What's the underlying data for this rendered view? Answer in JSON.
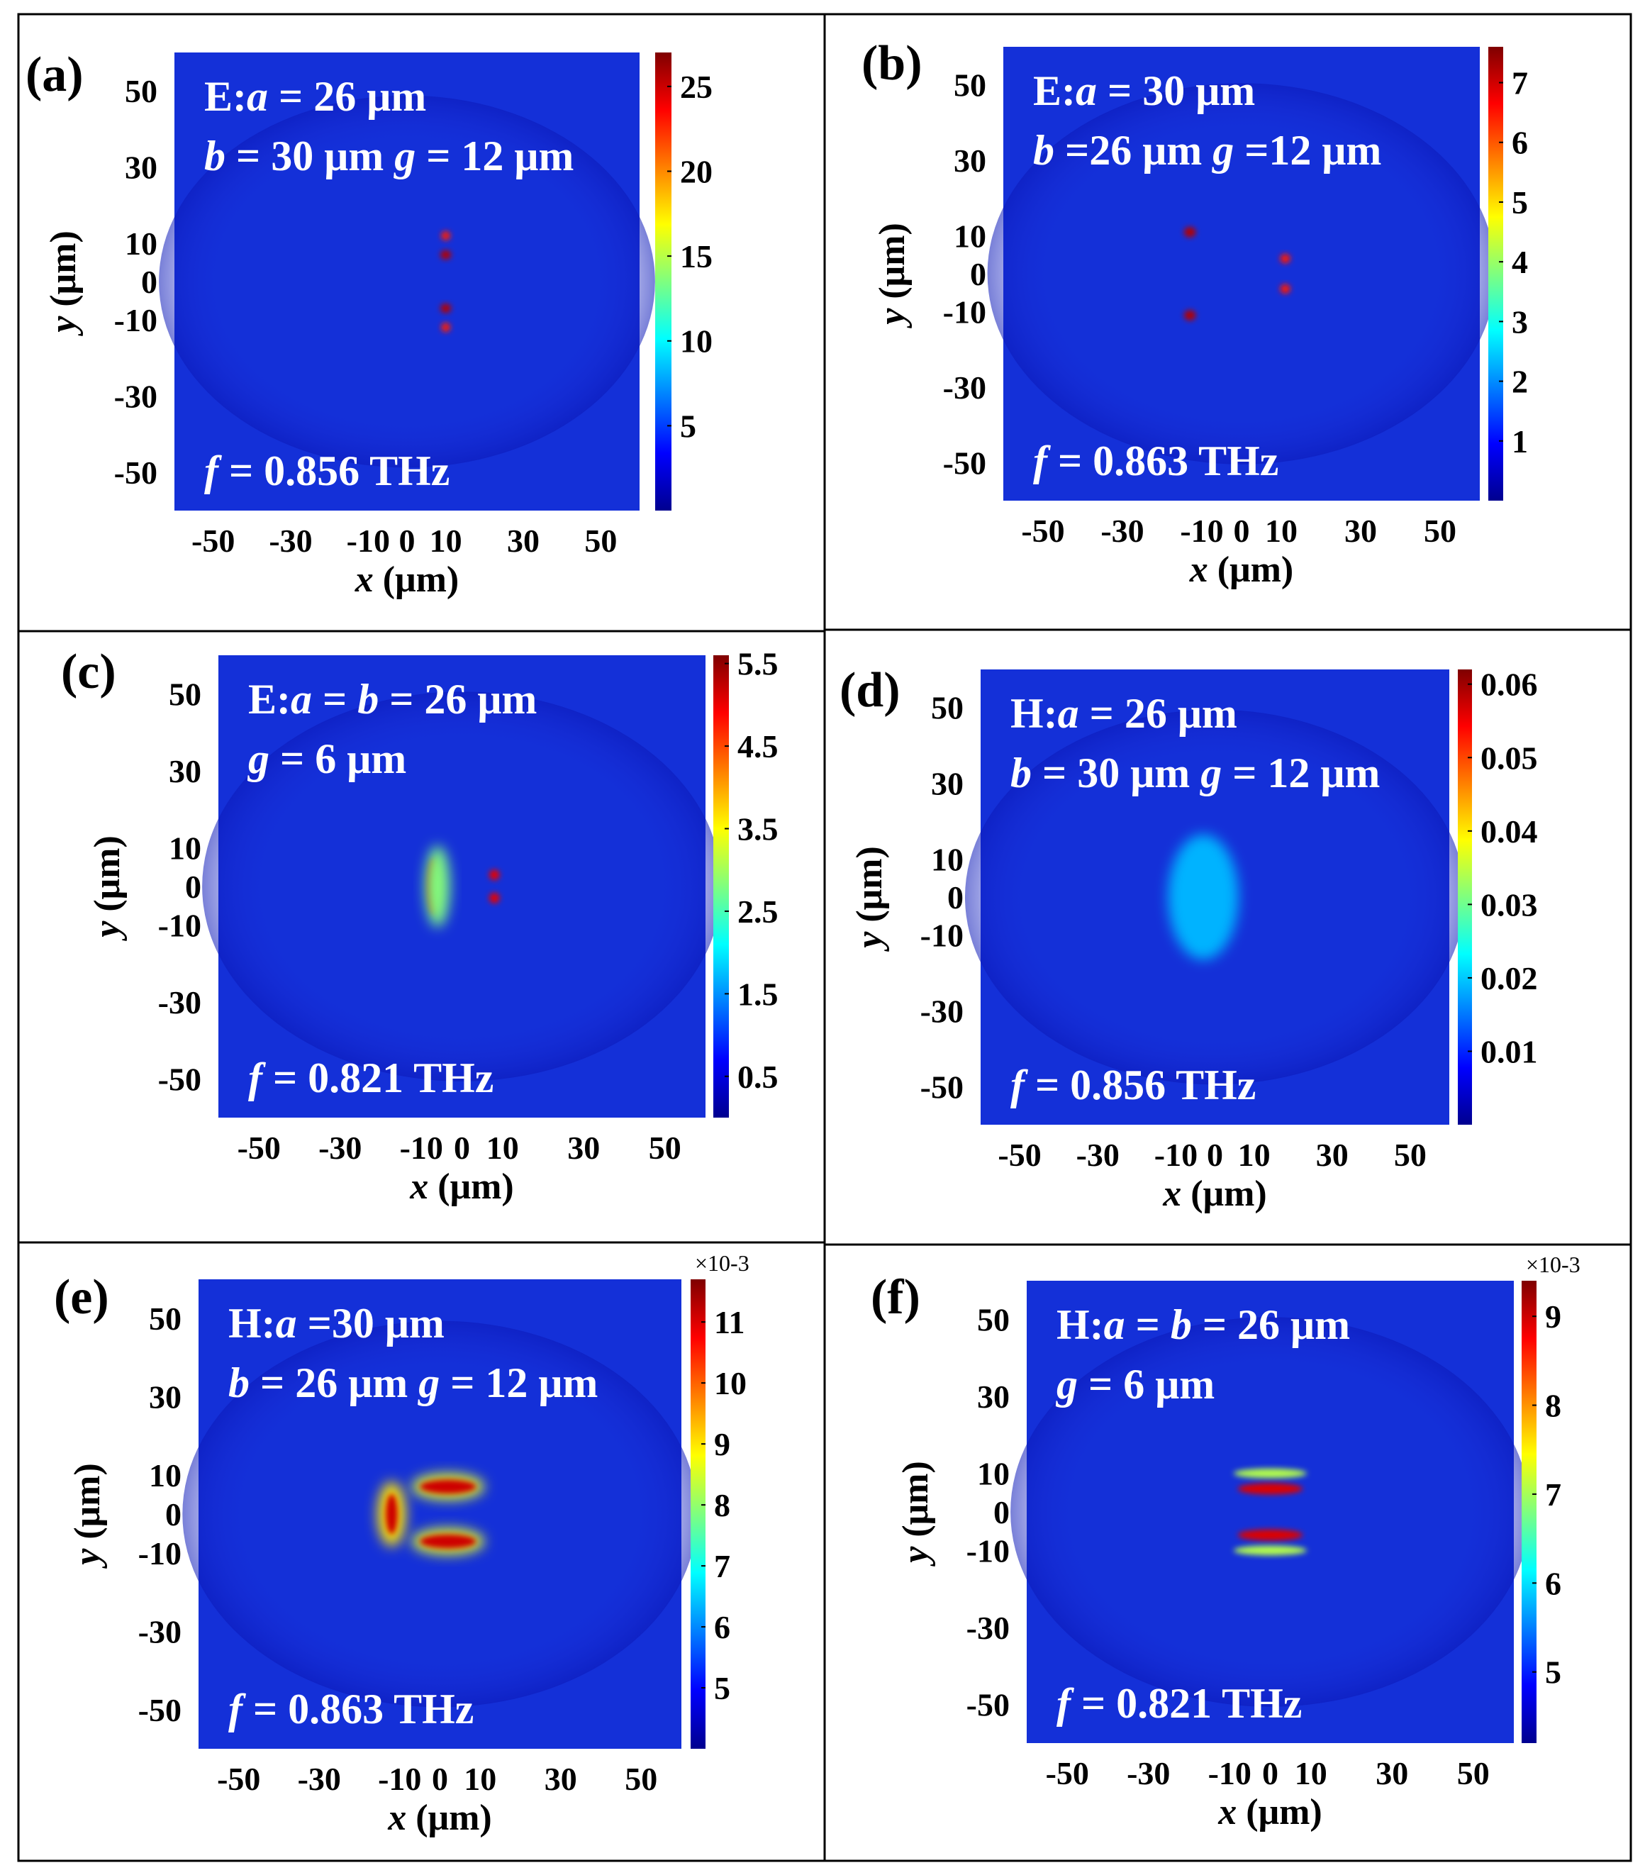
{
  "figure": {
    "x_label_var": "x",
    "y_label_var": "y",
    "axis_unit": " (μm)",
    "x_ticks": [
      "-50",
      "-30",
      "-10",
      "0",
      "10",
      "30",
      "50"
    ],
    "y_ticks": [
      "50",
      "30",
      "10",
      "0",
      "-10",
      "-30",
      "-50"
    ]
  },
  "chart_data": [
    {
      "type": "heatmap",
      "panel": "(a)",
      "field": "E",
      "title_line1": [
        "E:",
        "a",
        " = 26 μm"
      ],
      "title_line2": [
        "b",
        " = 30 μm ",
        "g",
        " = 12 μm"
      ],
      "frequency": [
        "f",
        " = 0.856 THz"
      ],
      "xlabel": "x (μm)",
      "ylabel": "y (μm)",
      "xlim": [
        -60,
        60
      ],
      "ylim": [
        -60,
        60
      ],
      "colorbar": {
        "ticks": [
          "25",
          "20",
          "15",
          "10",
          "5"
        ],
        "tick_values": [
          25,
          20,
          15,
          10,
          5
        ],
        "range": [
          0,
          27
        ],
        "exponent": ""
      },
      "geometry": {
        "a_um": 26,
        "b_um": 30,
        "g_um": 12
      }
    },
    {
      "type": "heatmap",
      "panel": "(b)",
      "field": "E",
      "title_line1": [
        "E:",
        "a",
        " = 30 μm"
      ],
      "title_line2": [
        "b",
        " =26 μm ",
        "g",
        " =12 μm"
      ],
      "frequency": [
        "f",
        " = 0.863 THz"
      ],
      "xlabel": "x (μm)",
      "ylabel": "y (μm)",
      "xlim": [
        -60,
        60
      ],
      "ylim": [
        -60,
        60
      ],
      "colorbar": {
        "ticks": [
          "7",
          "6",
          "5",
          "4",
          "3",
          "2",
          "1"
        ],
        "tick_values": [
          7,
          6,
          5,
          4,
          3,
          2,
          1
        ],
        "range": [
          0,
          7.6
        ],
        "exponent": ""
      },
      "geometry": {
        "a_um": 30,
        "b_um": 26,
        "g_um": 12
      }
    },
    {
      "type": "heatmap",
      "panel": "(c)",
      "field": "E",
      "title_line1": [
        "E:",
        "a",
        " = ",
        "b",
        " = 26 μm"
      ],
      "title_line2": [
        "g",
        " = 6 μm"
      ],
      "frequency": [
        "f",
        " = 0.821 THz"
      ],
      "xlabel": "x (μm)",
      "ylabel": "y (μm)",
      "xlim": [
        -60,
        60
      ],
      "ylim": [
        -60,
        60
      ],
      "colorbar": {
        "ticks": [
          "5.5",
          "4.5",
          "3.5",
          "2.5",
          "1.5",
          "0.5"
        ],
        "tick_values": [
          5.5,
          4.5,
          3.5,
          2.5,
          1.5,
          0.5
        ],
        "range": [
          0,
          5.6
        ],
        "exponent": ""
      },
      "geometry": {
        "a_um": 26,
        "b_um": 26,
        "g_um": 6
      }
    },
    {
      "type": "heatmap",
      "panel": "(d)",
      "field": "H",
      "title_line1": [
        "H:",
        "a",
        " = 26 μm"
      ],
      "title_line2": [
        "b",
        " = 30 μm ",
        "g",
        " = 12 μm"
      ],
      "frequency": [
        "f",
        " = 0.856 THz"
      ],
      "xlabel": "x (μm)",
      "ylabel": "y (μm)",
      "xlim": [
        -60,
        60
      ],
      "ylim": [
        -60,
        60
      ],
      "colorbar": {
        "ticks": [
          "0.06",
          "0.05",
          "0.04",
          "0.03",
          "0.02",
          "0.01"
        ],
        "tick_values": [
          0.06,
          0.05,
          0.04,
          0.03,
          0.02,
          0.01
        ],
        "range": [
          0,
          0.062
        ],
        "exponent": ""
      },
      "geometry": {
        "a_um": 26,
        "b_um": 30,
        "g_um": 12
      }
    },
    {
      "type": "heatmap",
      "panel": "(e)",
      "field": "H",
      "title_line1": [
        "H:",
        "a",
        " =30 μm"
      ],
      "title_line2": [
        "b",
        " = 26 μm ",
        "g",
        " = 12 μm"
      ],
      "frequency": [
        "f",
        " = 0.863 THz"
      ],
      "xlabel": "x (μm)",
      "ylabel": "y (μm)",
      "xlim": [
        -60,
        60
      ],
      "ylim": [
        -60,
        60
      ],
      "colorbar": {
        "ticks": [
          "11",
          "10",
          "9",
          "8",
          "7",
          "6",
          "5"
        ],
        "tick_values": [
          11,
          10,
          9,
          8,
          7,
          6,
          5
        ],
        "range": [
          4,
          11.7
        ],
        "exponent": "×10-3"
      },
      "geometry": {
        "a_um": 30,
        "b_um": 26,
        "g_um": 12
      }
    },
    {
      "type": "heatmap",
      "panel": "(f)",
      "field": "H",
      "title_line1": [
        "H:",
        "a",
        " = ",
        "b",
        " = 26 μm"
      ],
      "title_line2": [
        "g",
        " = 6 μm"
      ],
      "frequency": [
        "f",
        " = 0.821 THz"
      ],
      "xlabel": "x (μm)",
      "ylabel": "y (μm)",
      "xlim": [
        -60,
        60
      ],
      "ylim": [
        -60,
        60
      ],
      "colorbar": {
        "ticks": [
          "9",
          "8",
          "7",
          "6",
          "5"
        ],
        "tick_values": [
          9,
          8,
          7,
          6,
          5
        ],
        "range": [
          4.2,
          9.4
        ],
        "exponent": "×10-3"
      },
      "geometry": {
        "a_um": 26,
        "b_um": 26,
        "g_um": 6
      }
    }
  ]
}
